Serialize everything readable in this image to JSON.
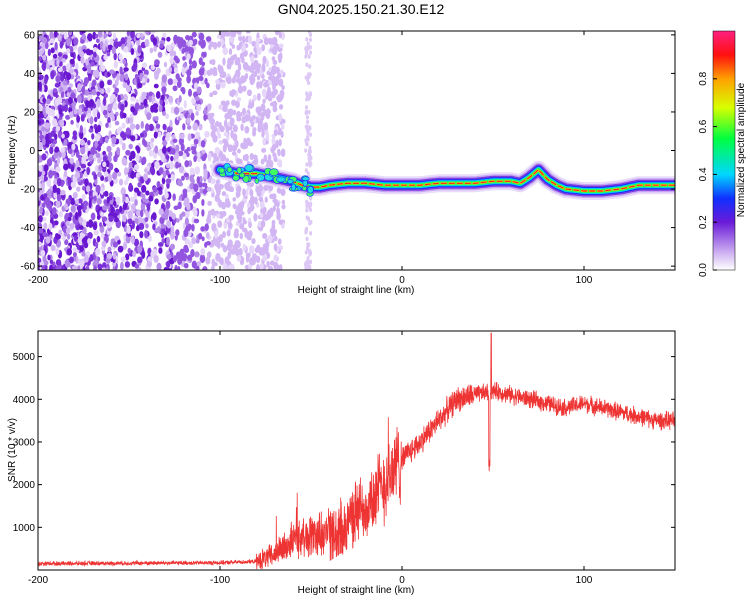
{
  "title": "GN04.2025.150.21.30.E12",
  "chart_data": [
    {
      "type": "heatmap",
      "xlabel": "Height of straight line (km)",
      "ylabel": "Frequency (Hz)",
      "xlim": [
        -200,
        150
      ],
      "ylim": [
        -62,
        62
      ],
      "xticks": [
        -200,
        -100,
        0,
        100
      ],
      "yticks": [
        -60,
        -40,
        -20,
        0,
        20,
        40,
        60
      ],
      "colorbar": {
        "label": "Normalized spectral amplitude",
        "range": [
          0,
          1
        ],
        "ticks": [
          "0.0",
          "0.2",
          "0.4",
          "0.6",
          "0.8"
        ]
      },
      "noise_region_x": [
        -200,
        -75
      ],
      "ridge": {
        "x": [
          -100,
          -90,
          -80,
          -70,
          -60,
          -55,
          -50,
          -45,
          -40,
          -30,
          -20,
          -10,
          0,
          10,
          20,
          30,
          40,
          50,
          60,
          65,
          70,
          75,
          80,
          85,
          90,
          100,
          110,
          120,
          130,
          140,
          150
        ],
        "y": [
          -10,
          -12,
          -12,
          -14,
          -16,
          -18,
          -19,
          -19,
          -18,
          -17,
          -17,
          -18,
          -18,
          -18,
          -17,
          -17,
          -17,
          -16,
          -16,
          -17,
          -14,
          -10,
          -15,
          -18,
          -20,
          -21,
          -21,
          -20,
          -18,
          -18,
          -18
        ]
      }
    },
    {
      "type": "line",
      "xlabel": "Height of straight line (km)",
      "ylabel": "SNR (10 * v/v)",
      "xlim": [
        -200,
        150
      ],
      "ylim": [
        0,
        5600
      ],
      "xticks": [
        -200,
        -100,
        0,
        100
      ],
      "yticks": [
        1000,
        2000,
        3000,
        4000,
        5000
      ],
      "series_color": "#ee3333",
      "x": [
        -200,
        -150,
        -100,
        -80,
        -70,
        -60,
        -50,
        -40,
        -30,
        -20,
        -10,
        0,
        10,
        20,
        30,
        40,
        50,
        60,
        70,
        80,
        90,
        100,
        110,
        120,
        130,
        140,
        150
      ],
      "values": [
        150,
        160,
        170,
        200,
        350,
        700,
        800,
        900,
        1200,
        1500,
        2000,
        2600,
        3000,
        3500,
        4000,
        4100,
        4200,
        4100,
        4000,
        3900,
        3800,
        3900,
        3800,
        3700,
        3600,
        3500,
        3500
      ]
    }
  ]
}
